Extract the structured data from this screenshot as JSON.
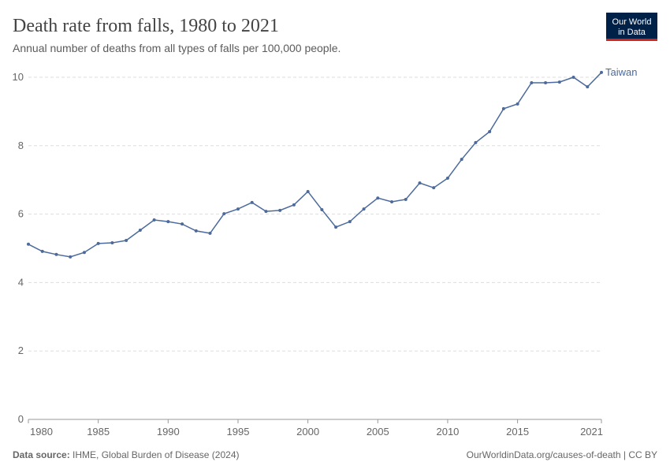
{
  "chart_data": {
    "type": "line",
    "title": "Death rate from falls, 1980 to 2021",
    "subtitle": "Annual number of deaths from all types of falls per 100,000 people.",
    "logo": [
      "Our World",
      "in Data"
    ],
    "source_label": "Data source:",
    "source": "IHME, Global Burden of Disease (2024)",
    "footer_right": "OurWorldinData.org/causes-of-death | CC BY",
    "x": [
      1980,
      1981,
      1982,
      1983,
      1984,
      1985,
      1986,
      1987,
      1988,
      1989,
      1990,
      1991,
      1992,
      1993,
      1994,
      1995,
      1996,
      1997,
      1998,
      1999,
      2000,
      2001,
      2002,
      2003,
      2004,
      2005,
      2006,
      2007,
      2008,
      2009,
      2010,
      2011,
      2012,
      2013,
      2014,
      2015,
      2016,
      2017,
      2018,
      2019,
      2020,
      2021
    ],
    "series": [
      {
        "name": "Taiwan",
        "color": "#4c6a9c",
        "values": [
          5.12,
          4.91,
          4.82,
          4.75,
          4.88,
          5.14,
          5.16,
          5.23,
          5.53,
          5.83,
          5.78,
          5.71,
          5.51,
          5.44,
          6.01,
          6.15,
          6.34,
          6.08,
          6.11,
          6.27,
          6.66,
          6.13,
          5.62,
          5.78,
          6.15,
          6.47,
          6.36,
          6.43,
          6.91,
          6.77,
          7.05,
          7.6,
          8.09,
          8.41,
          9.08,
          9.22,
          9.84,
          9.84,
          9.86,
          10.0,
          9.72,
          10.14
        ]
      }
    ],
    "xlim": [
      1980,
      2021
    ],
    "xticks": [
      1980,
      1985,
      1990,
      1995,
      2000,
      2005,
      2010,
      2015,
      2021
    ],
    "ylim": [
      0,
      10
    ],
    "yticks": [
      0,
      2,
      4,
      6,
      8,
      10
    ],
    "grid": true
  }
}
